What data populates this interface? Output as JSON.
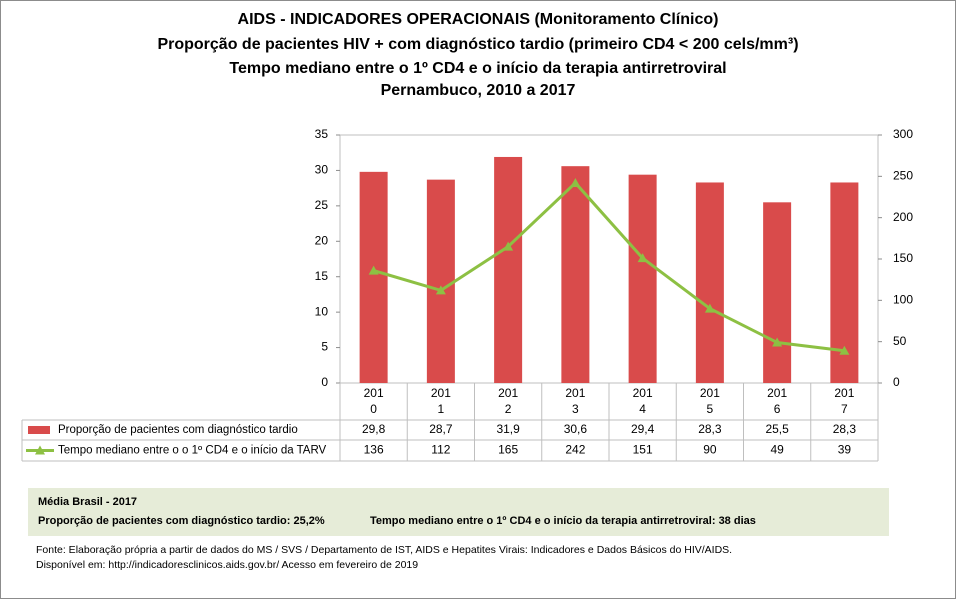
{
  "chart_data": {
    "type": "bar-line",
    "title": [
      "AIDS - INDICADORES OPERACIONAIS (Monitoramento Clínico)",
      "Proporção de pacientes HIV + com diagnóstico tardio (primeiro CD4 < 200 cels/mm³)",
      "Tempo mediano entre o 1º CD4 e o início da terapia antirretroviral",
      "Pernambuco, 2010 a 2017"
    ],
    "categories": [
      "2010",
      "2011",
      "2012",
      "2013",
      "2014",
      "2015",
      "2016",
      "2017"
    ],
    "series": [
      {
        "name": "Proporção de pacientes com diagnóstico tardio",
        "type": "bar",
        "color": "#d94b4b",
        "values": [
          29.8,
          28.7,
          31.9,
          30.6,
          29.4,
          28.3,
          25.5,
          28.3
        ],
        "value_labels": [
          "29,8",
          "28,7",
          "31,9",
          "30,6",
          "29,4",
          "28,3",
          "25,5",
          "28,3"
        ]
      },
      {
        "name": "Tempo mediano entre o o 1º CD4 e o início da TARV",
        "type": "line",
        "axis": "y2",
        "color": "#8dc043",
        "values": [
          136,
          112,
          165,
          242,
          151,
          90,
          49,
          39
        ]
      }
    ],
    "ylim": [
      0,
      35
    ],
    "yticks": [
      0,
      5,
      10,
      15,
      20,
      25,
      30,
      35
    ],
    "y2lim": [
      0,
      300
    ],
    "y2ticks": [
      0,
      50,
      100,
      150,
      200,
      250,
      300
    ]
  },
  "summary": {
    "title": "Média Brasil - 2017",
    "items": [
      "Proporção de pacientes com diagnóstico  tardio: 25,2%",
      "Tempo mediano entre o 1º CD4 e o início da terapia antirretroviral: 38 dias"
    ]
  },
  "source": [
    "Fonte: Elaboração própria a partir de dados do  MS / SVS / Departamento de IST, AIDS e Hepatites Virais: Indicadores e Dados Básicos do HIV/AIDS.",
    "Disponível em: http://indicadoresclinicos.aids.gov.br/ Acesso em fevereiro de 2019"
  ]
}
